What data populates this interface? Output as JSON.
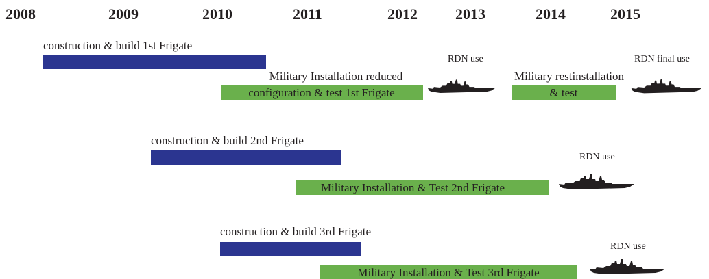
{
  "years": [
    "2008",
    "2009",
    "2010",
    "2011",
    "2012",
    "2013",
    "2014",
    "2015"
  ],
  "rows": [
    {
      "build": "construction & build 1st Frigate",
      "install_caption": "Military Installation reduced",
      "install": "configuration & test 1st Frigate",
      "use": "RDN use",
      "reinstall_caption": "Military restinstallation",
      "reinstall": "& test",
      "final_use": "RDN final use"
    },
    {
      "build": "construction & build 2nd Frigate",
      "install": "Military Installation & Test 2nd Frigate",
      "use": "RDN use"
    },
    {
      "build": "construction & build 3rd Frigate",
      "install": "Military Installation & Test 3rd Frigate",
      "use": "RDN use"
    }
  ]
}
